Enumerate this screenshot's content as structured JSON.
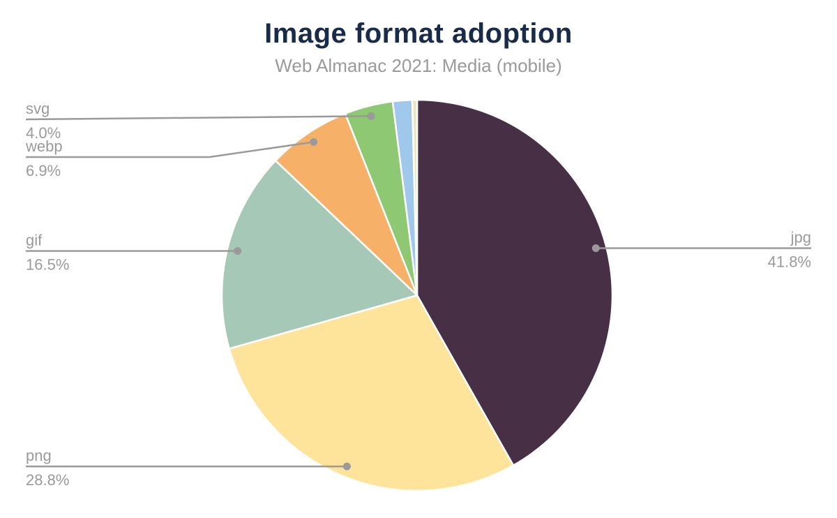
{
  "header": {
    "title": "Image format adoption",
    "subtitle": "Web Almanac 2021: Media (mobile)",
    "title_color": "#182b49",
    "subtitle_color": "#9a9a9a"
  },
  "chart_data": {
    "type": "pie",
    "title": "Image format adoption",
    "subtitle": "Web Almanac 2021: Media (mobile)",
    "unit": "%",
    "legend_position": "none",
    "label_style": "leader-line callouts with underlined name and percent below",
    "start_angle": "12 o'clock, clockwise",
    "slices": [
      {
        "label": "jpg",
        "value": 41.8,
        "pct_label": "41.8%",
        "color": "#472f46",
        "labeled": true
      },
      {
        "label": "png",
        "value": 28.8,
        "pct_label": "28.8%",
        "color": "#fde49a",
        "labeled": true
      },
      {
        "label": "gif",
        "value": 16.5,
        "pct_label": "16.5%",
        "color": "#a5c9b6",
        "labeled": true
      },
      {
        "label": "webp",
        "value": 6.9,
        "pct_label": "6.9%",
        "color": "#f6b068",
        "labeled": true
      },
      {
        "label": "svg",
        "value": 4.0,
        "pct_label": "4.0%",
        "color": "#8ec873",
        "labeled": true
      },
      {
        "label": "",
        "value": 1.6,
        "pct_label": "",
        "color": "#a0c8eb",
        "labeled": false
      },
      {
        "label": "",
        "value": 0.4,
        "pct_label": "",
        "color": "#eee3c2",
        "labeled": false
      }
    ],
    "colors": {
      "leader_line": "#9a9a9a",
      "label_text": "#9a9a9a",
      "slice_stroke": "#ffffff"
    }
  }
}
